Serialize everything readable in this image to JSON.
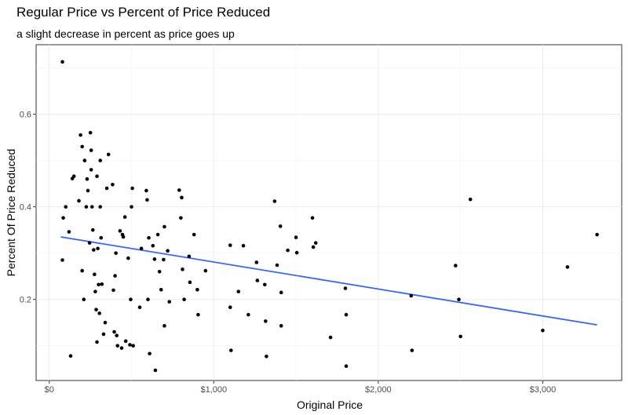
{
  "chart_data": {
    "type": "scatter",
    "title": "Regular Price vs Percent of Price Reduced",
    "subtitle": "a slight decrease in percent as price goes up",
    "xlabel": "Original Price",
    "ylabel": "Percent Of Price Reduced",
    "xlim": [
      -80,
      3480
    ],
    "ylim": [
      0.025,
      0.75
    ],
    "x_ticks": [
      0,
      1000,
      2000,
      3000
    ],
    "x_tick_labels": [
      "$0",
      "$1,000",
      "$2,000",
      "$3,000"
    ],
    "y_ticks": [
      0.2,
      0.4,
      0.6
    ],
    "y_tick_labels": [
      "0.2",
      "0.4",
      "0.6"
    ],
    "grid": true,
    "legend": "none",
    "point_color": "#000000",
    "line_color": "#3366FF",
    "trend_line": {
      "x": [
        70,
        3330
      ],
      "y": [
        0.335,
        0.145
      ]
    },
    "points": [
      {
        "x": 80,
        "y": 0.713
      },
      {
        "x": 85,
        "y": 0.376
      },
      {
        "x": 80,
        "y": 0.285
      },
      {
        "x": 100,
        "y": 0.4
      },
      {
        "x": 120,
        "y": 0.346
      },
      {
        "x": 130,
        "y": 0.078
      },
      {
        "x": 140,
        "y": 0.461
      },
      {
        "x": 150,
        "y": 0.466
      },
      {
        "x": 180,
        "y": 0.413
      },
      {
        "x": 190,
        "y": 0.555
      },
      {
        "x": 200,
        "y": 0.53
      },
      {
        "x": 200,
        "y": 0.262
      },
      {
        "x": 210,
        "y": 0.2
      },
      {
        "x": 215,
        "y": 0.5
      },
      {
        "x": 225,
        "y": 0.4
      },
      {
        "x": 230,
        "y": 0.46
      },
      {
        "x": 235,
        "y": 0.435
      },
      {
        "x": 245,
        "y": 0.322
      },
      {
        "x": 250,
        "y": 0.56
      },
      {
        "x": 255,
        "y": 0.522
      },
      {
        "x": 255,
        "y": 0.48
      },
      {
        "x": 260,
        "y": 0.4
      },
      {
        "x": 265,
        "y": 0.35
      },
      {
        "x": 270,
        "y": 0.307
      },
      {
        "x": 275,
        "y": 0.254
      },
      {
        "x": 280,
        "y": 0.217
      },
      {
        "x": 285,
        "y": 0.178
      },
      {
        "x": 290,
        "y": 0.108
      },
      {
        "x": 290,
        "y": 0.466
      },
      {
        "x": 295,
        "y": 0.31
      },
      {
        "x": 300,
        "y": 0.232
      },
      {
        "x": 305,
        "y": 0.17
      },
      {
        "x": 310,
        "y": 0.4
      },
      {
        "x": 310,
        "y": 0.5
      },
      {
        "x": 315,
        "y": 0.333
      },
      {
        "x": 320,
        "y": 0.233
      },
      {
        "x": 330,
        "y": 0.125
      },
      {
        "x": 340,
        "y": 0.15
      },
      {
        "x": 350,
        "y": 0.44
      },
      {
        "x": 360,
        "y": 0.513
      },
      {
        "x": 385,
        "y": 0.448
      },
      {
        "x": 390,
        "y": 0.22
      },
      {
        "x": 395,
        "y": 0.13
      },
      {
        "x": 400,
        "y": 0.251
      },
      {
        "x": 405,
        "y": 0.3
      },
      {
        "x": 410,
        "y": 0.122
      },
      {
        "x": 415,
        "y": 0.1
      },
      {
        "x": 430,
        "y": 0.348
      },
      {
        "x": 440,
        "y": 0.095
      },
      {
        "x": 445,
        "y": 0.34
      },
      {
        "x": 450,
        "y": 0.335
      },
      {
        "x": 460,
        "y": 0.378
      },
      {
        "x": 465,
        "y": 0.11
      },
      {
        "x": 480,
        "y": 0.289
      },
      {
        "x": 490,
        "y": 0.102
      },
      {
        "x": 495,
        "y": 0.2
      },
      {
        "x": 500,
        "y": 0.4
      },
      {
        "x": 505,
        "y": 0.44
      },
      {
        "x": 510,
        "y": 0.1
      },
      {
        "x": 550,
        "y": 0.183
      },
      {
        "x": 560,
        "y": 0.31
      },
      {
        "x": 590,
        "y": 0.435
      },
      {
        "x": 595,
        "y": 0.415
      },
      {
        "x": 600,
        "y": 0.2
      },
      {
        "x": 605,
        "y": 0.333
      },
      {
        "x": 610,
        "y": 0.083
      },
      {
        "x": 630,
        "y": 0.316
      },
      {
        "x": 640,
        "y": 0.287
      },
      {
        "x": 645,
        "y": 0.047
      },
      {
        "x": 660,
        "y": 0.34
      },
      {
        "x": 670,
        "y": 0.26
      },
      {
        "x": 680,
        "y": 0.221
      },
      {
        "x": 695,
        "y": 0.286
      },
      {
        "x": 700,
        "y": 0.357
      },
      {
        "x": 700,
        "y": 0.143
      },
      {
        "x": 720,
        "y": 0.305
      },
      {
        "x": 730,
        "y": 0.195
      },
      {
        "x": 790,
        "y": 0.436
      },
      {
        "x": 800,
        "y": 0.376
      },
      {
        "x": 805,
        "y": 0.42
      },
      {
        "x": 810,
        "y": 0.265
      },
      {
        "x": 820,
        "y": 0.2
      },
      {
        "x": 850,
        "y": 0.293
      },
      {
        "x": 855,
        "y": 0.237
      },
      {
        "x": 880,
        "y": 0.34
      },
      {
        "x": 900,
        "y": 0.221
      },
      {
        "x": 905,
        "y": 0.167
      },
      {
        "x": 950,
        "y": 0.262
      },
      {
        "x": 1100,
        "y": 0.317
      },
      {
        "x": 1100,
        "y": 0.183
      },
      {
        "x": 1105,
        "y": 0.09
      },
      {
        "x": 1150,
        "y": 0.217
      },
      {
        "x": 1180,
        "y": 0.316
      },
      {
        "x": 1210,
        "y": 0.167
      },
      {
        "x": 1260,
        "y": 0.28
      },
      {
        "x": 1265,
        "y": 0.241
      },
      {
        "x": 1310,
        "y": 0.232
      },
      {
        "x": 1315,
        "y": 0.153
      },
      {
        "x": 1320,
        "y": 0.077
      },
      {
        "x": 1370,
        "y": 0.412
      },
      {
        "x": 1385,
        "y": 0.274
      },
      {
        "x": 1405,
        "y": 0.358
      },
      {
        "x": 1410,
        "y": 0.215
      },
      {
        "x": 1410,
        "y": 0.143
      },
      {
        "x": 1450,
        "y": 0.306
      },
      {
        "x": 1500,
        "y": 0.334
      },
      {
        "x": 1505,
        "y": 0.301
      },
      {
        "x": 1600,
        "y": 0.376
      },
      {
        "x": 1605,
        "y": 0.313
      },
      {
        "x": 1620,
        "y": 0.322
      },
      {
        "x": 1710,
        "y": 0.118
      },
      {
        "x": 1800,
        "y": 0.224
      },
      {
        "x": 1805,
        "y": 0.167
      },
      {
        "x": 1805,
        "y": 0.056
      },
      {
        "x": 2200,
        "y": 0.208
      },
      {
        "x": 2205,
        "y": 0.09
      },
      {
        "x": 2470,
        "y": 0.273
      },
      {
        "x": 2490,
        "y": 0.2
      },
      {
        "x": 2500,
        "y": 0.12
      },
      {
        "x": 2560,
        "y": 0.416
      },
      {
        "x": 3000,
        "y": 0.133
      },
      {
        "x": 3150,
        "y": 0.27
      },
      {
        "x": 3330,
        "y": 0.34
      }
    ]
  }
}
